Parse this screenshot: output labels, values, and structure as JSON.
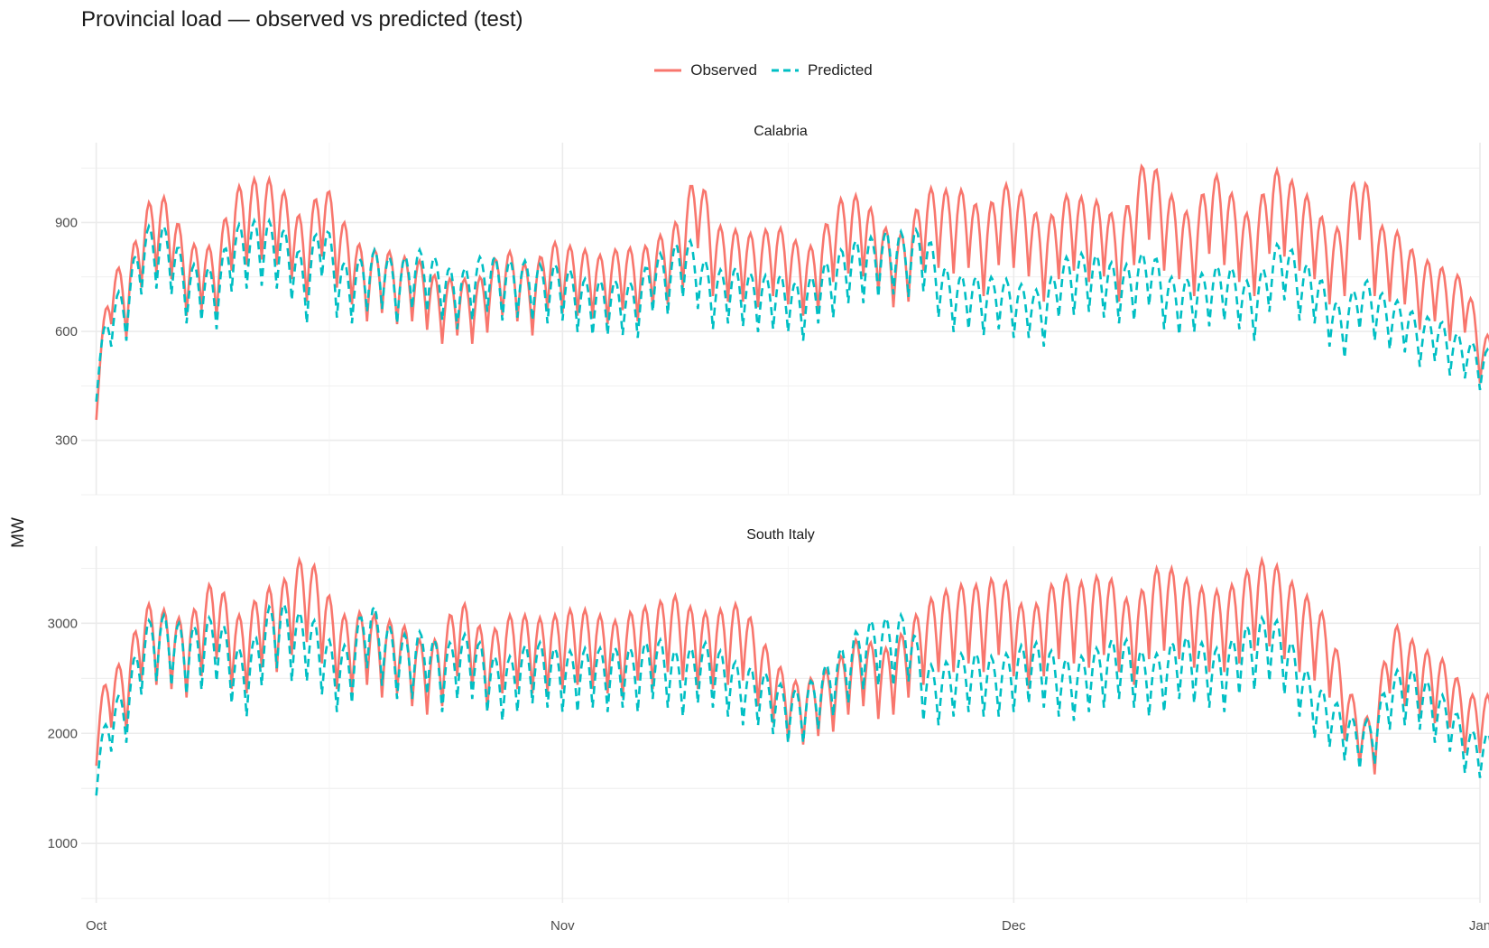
{
  "chart_data": {
    "type": "line",
    "title": "Provincial load — observed vs predicted (test)",
    "ylabel": "MW",
    "xlabel": "",
    "legend": {
      "position": "top",
      "entries": [
        "Observed",
        "Predicted"
      ]
    },
    "grid": true,
    "colors": {
      "Observed": "#F8766D",
      "Predicted": "#00BFC4"
    },
    "x_ticks": [
      "Oct",
      "Nov",
      "Dec",
      "Jan"
    ],
    "x_range": [
      "2019-09-30",
      "2020-01-01"
    ],
    "sampling": "daily (approximate reading of an hourly series)",
    "start_date": "2019-10-01",
    "panels": [
      {
        "name": "Calabria",
        "ylim": [
          150,
          1120
        ],
        "y_ticks": [
          300,
          600,
          900
        ],
        "series": [
          {
            "name": "Observed",
            "values": [
              460,
              800,
              750,
              930,
              980,
              960,
              830,
              850,
              820,
              990,
              1010,
              1030,
              1010,
              960,
              880,
              1040,
              930,
              870,
              810,
              840,
              800,
              810,
              780,
              730,
              760,
              730,
              770,
              830,
              810,
              760,
              850,
              840,
              830,
              820,
              800,
              850,
              810,
              860,
              870,
              930,
              1070,
              900,
              880,
              880,
              860,
              900,
              870,
              830,
              840,
              950,
              980,
              970,
              910,
              860,
              880,
              990,
              1000,
              980,
              1000,
              900,
              1010,
              1000,
              970,
              880,
              960,
              990,
              950,
              970,
              880,
              1010,
              1100,
              990,
              960,
              900,
              1050,
              1010,
              950,
              900,
              1050,
              1040,
              990,
              960,
              870,
              900,
              1100,
              900,
              880,
              870,
              780,
              810,
              740,
              770,
              590
            ]
          },
          {
            "name": "Predicted",
            "values": [
              510,
              700,
              720,
              880,
              900,
              880,
              780,
              790,
              760,
              890,
              900,
              910,
              900,
              860,
              780,
              940,
              800,
              780,
              820,
              830,
              780,
              830,
              820,
              790,
              760,
              790,
              820,
              790,
              800,
              790,
              780,
              790,
              750,
              740,
              740,
              740,
              730,
              820,
              810,
              870,
              830,
              760,
              780,
              770,
              750,
              760,
              750,
              720,
              780,
              800,
              850,
              850,
              870,
              880,
              870,
              890,
              800,
              750,
              760,
              740,
              760,
              730,
              730,
              700,
              800,
              810,
              820,
              800,
              780,
              790,
              840,
              760,
              740,
              750,
              770,
              790,
              760,
              720,
              820,
              860,
              790,
              780,
              700,
              660,
              760,
              720,
              690,
              680,
              630,
              650,
              600,
              590,
              550
            ]
          }
        ]
      },
      {
        "name": "South Italy",
        "ylim": [
          460,
          3700
        ],
        "y_ticks": [
          1000,
          2000,
          3000
        ],
        "series": [
          {
            "name": "Observed",
            "values": [
              2200,
              2650,
              2600,
              3200,
              3150,
              3100,
              3000,
              3250,
              3450,
              3100,
              3050,
              3350,
              3300,
              3500,
              3650,
              3400,
              3100,
              3050,
              3150,
              3000,
              3050,
              2900,
              2800,
              2900,
              3250,
              3100,
              2850,
              3050,
              3100,
              3050,
              3050,
              3100,
              3150,
              3100,
              3050,
              3000,
              3200,
              3100,
              3300,
              3200,
              3100,
              3100,
              3150,
              3200,
              2900,
              2700,
              2500,
              2450,
              2550,
              2600,
              2800,
              2900,
              2750,
              2800,
              3000,
              3150,
              3300,
              3300,
              3400,
              3300,
              3500,
              3250,
              3100,
              3250,
              3450,
              3400,
              3350,
              3500,
              3300,
              3150,
              3450,
              3550,
              3450,
              3350,
              3300,
              3300,
              3400,
              3550,
              3600,
              3450,
              3300,
              3200,
              3000,
              2500,
              2200,
              2100,
              3050,
              2900,
              2800,
              2700,
              2650,
              2350,
              2350
            ]
          },
          {
            "name": "Predicted",
            "values": [
              1800,
              2300,
              2400,
              2950,
              3100,
              3050,
              2950,
              3000,
              3100,
              2850,
              2700,
              3050,
              3250,
              3100,
              3100,
              2950,
              2750,
              2850,
              3250,
              3050,
              2900,
              2900,
              2950,
              2750,
              2900,
              2900,
              2750,
              2650,
              2750,
              2850,
              2800,
              2750,
              2750,
              2800,
              2750,
              2800,
              2750,
              2900,
              2800,
              2700,
              2850,
              2800,
              2700,
              2600,
              2600,
              2500,
              2400,
              2400,
              2550,
              2700,
              2850,
              3000,
              3050,
              3050,
              3100,
              2650,
              2600,
              2700,
              2750,
              2700,
              2700,
              2750,
              2850,
              2800,
              2700,
              2650,
              2750,
              2800,
              2900,
              2800,
              2700,
              2750,
              2900,
              2850,
              2800,
              2750,
              2950,
              3000,
              3100,
              2950,
              2700,
              2450,
              2350,
              2200,
              2100,
              2150,
              2550,
              2600,
              2550,
              2400,
              2300,
              2050,
              2000
            ]
          }
        ]
      }
    ]
  }
}
